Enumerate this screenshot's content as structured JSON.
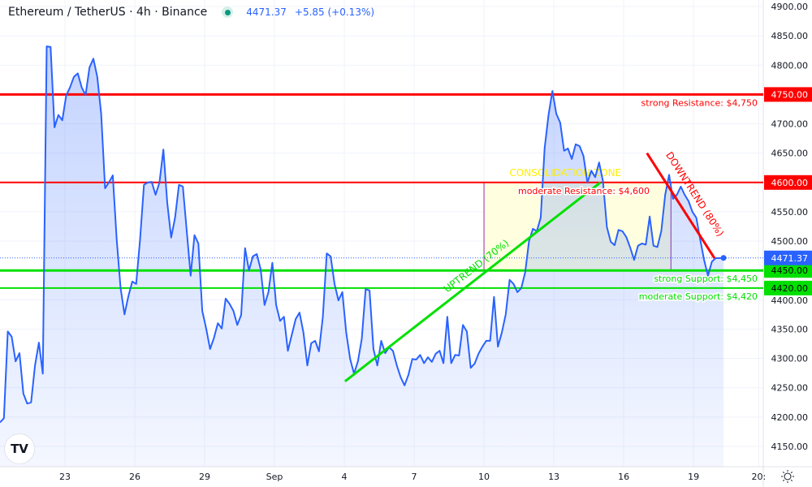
{
  "header": {
    "title": "Ethereum / TetherUS · 4h · Binance",
    "price": "4471.37",
    "change": "+5.85 (+0.13%)",
    "status_color": "#089981"
  },
  "logo": "TV",
  "settings_icon": "sun-gear-icon",
  "chart_data": {
    "type": "line",
    "title": "Ethereum / TetherUS · 4h · Binance",
    "x_unit": "day (Aug=1..31, Sep 1=32)",
    "x_first_day": 20.21,
    "x_last_day": 51.29,
    "ylim": [
      4120,
      4910
    ],
    "y_ticks": [
      4150,
      4200,
      4250,
      4300,
      4350,
      4400,
      4450,
      4500,
      4550,
      4600,
      4650,
      4700,
      4750,
      4800,
      4850,
      4900
    ],
    "y_tick_labels": [
      "4150.00",
      "4200.00",
      "4250.00",
      "4300.00",
      "4350.00",
      "4400.00",
      "4450.00",
      "4500.00",
      "4550.00",
      "4600.00",
      "4650.00",
      "4700.00",
      "4750.00",
      "4800.00",
      "4850.00",
      "4900.00"
    ],
    "x_ticks": [
      {
        "day": 23,
        "label": "23"
      },
      {
        "day": 26,
        "label": "26"
      },
      {
        "day": 29,
        "label": "29"
      },
      {
        "day": 32,
        "label": "Sep"
      },
      {
        "day": 35,
        "label": "4"
      },
      {
        "day": 38,
        "label": "7"
      },
      {
        "day": 41,
        "label": "10"
      },
      {
        "day": 44,
        "label": "13"
      },
      {
        "day": 47,
        "label": "16"
      },
      {
        "day": 50,
        "label": "19"
      },
      {
        "day": 52.8,
        "label": "20:"
      }
    ],
    "series": [
      {
        "name": "ETHUSDT close",
        "color": "#2962ff",
        "values": [
          4191,
          4198,
          4346,
          4337,
          4295,
          4309,
          4240,
          4223,
          4225,
          4288,
          4327,
          4274,
          4832,
          4831,
          4694,
          4715,
          4706,
          4748,
          4762,
          4780,
          4786,
          4762,
          4749,
          4796,
          4811,
          4780,
          4717,
          4590,
          4600,
          4612,
          4503,
          4420,
          4375,
          4406,
          4431,
          4427,
          4503,
          4596,
          4600,
          4601,
          4579,
          4600,
          4656,
          4565,
          4506,
          4540,
          4596,
          4593,
          4517,
          4441,
          4510,
          4496,
          4381,
          4351,
          4316,
          4335,
          4360,
          4351,
          4402,
          4393,
          4381,
          4357,
          4374,
          4488,
          4450,
          4474,
          4478,
          4452,
          4391,
          4413,
          4463,
          4391,
          4364,
          4371,
          4313,
          4340,
          4367,
          4378,
          4344,
          4288,
          4326,
          4330,
          4312,
          4371,
          4479,
          4474,
          4427,
          4399,
          4413,
          4344,
          4299,
          4274,
          4295,
          4333,
          4418,
          4416,
          4316,
          4288,
          4330,
          4309,
          4319,
          4313,
          4288,
          4268,
          4254,
          4272,
          4299,
          4298,
          4306,
          4292,
          4302,
          4294,
          4308,
          4313,
          4292,
          4371,
          4292,
          4306,
          4305,
          4357,
          4346,
          4284,
          4291,
          4308,
          4320,
          4330,
          4330,
          4405,
          4320,
          4344,
          4375,
          4434,
          4427,
          4413,
          4420,
          4447,
          4500,
          4521,
          4517,
          4540,
          4658,
          4715,
          4756,
          4717,
          4702,
          4654,
          4658,
          4640,
          4665,
          4662,
          4645,
          4600,
          4620,
          4609,
          4634,
          4602,
          4524,
          4499,
          4493,
          4519,
          4517,
          4507,
          4489,
          4468,
          4492,
          4496,
          4494,
          4542,
          4492,
          4490,
          4517,
          4579,
          4613,
          4572,
          4579,
          4593,
          4579,
          4568,
          4550,
          4540,
          4503,
          4468,
          4441,
          4465,
          4471,
          4471,
          4471.37
        ]
      }
    ],
    "current_price": {
      "value": 4471.37,
      "label": "4471.37",
      "color": "#2962ff"
    },
    "levels": [
      {
        "price": 4750,
        "label": "strong Resistance: $4,750",
        "tag": "4750.00",
        "color": "#ff0000",
        "strong": true
      },
      {
        "price": 4600,
        "label": "moderate Resistance: $4,600",
        "tag": "4600.00",
        "color": "#ff0000",
        "strong": false
      },
      {
        "price": 4450,
        "label": "strong Support: $4,450",
        "tag": "4450.00",
        "color": "#00e000",
        "strong": true
      },
      {
        "price": 4420,
        "label": "moderate Support: $4,420",
        "tag": "4420.00",
        "color": "#00e000",
        "strong": false
      }
    ],
    "zone": {
      "label": "CONSOLIDATION ZONE",
      "day_from": 41,
      "day_to": 49.03,
      "price_low": 4450,
      "price_high": 4600,
      "fill": "#ffffe0",
      "border": "#9c27b0",
      "text_color": "#ffee00"
    },
    "trendlines": [
      {
        "label": "UPTREND (70%)",
        "from": [
          35.03,
          4261
        ],
        "to": [
          46.0,
          4600
        ],
        "color": "#00e000"
      },
      {
        "label": "DOWNTREND (80%)",
        "from": [
          48.0,
          4650
        ],
        "to": [
          50.9,
          4471
        ],
        "color": "#ff0000"
      }
    ]
  }
}
